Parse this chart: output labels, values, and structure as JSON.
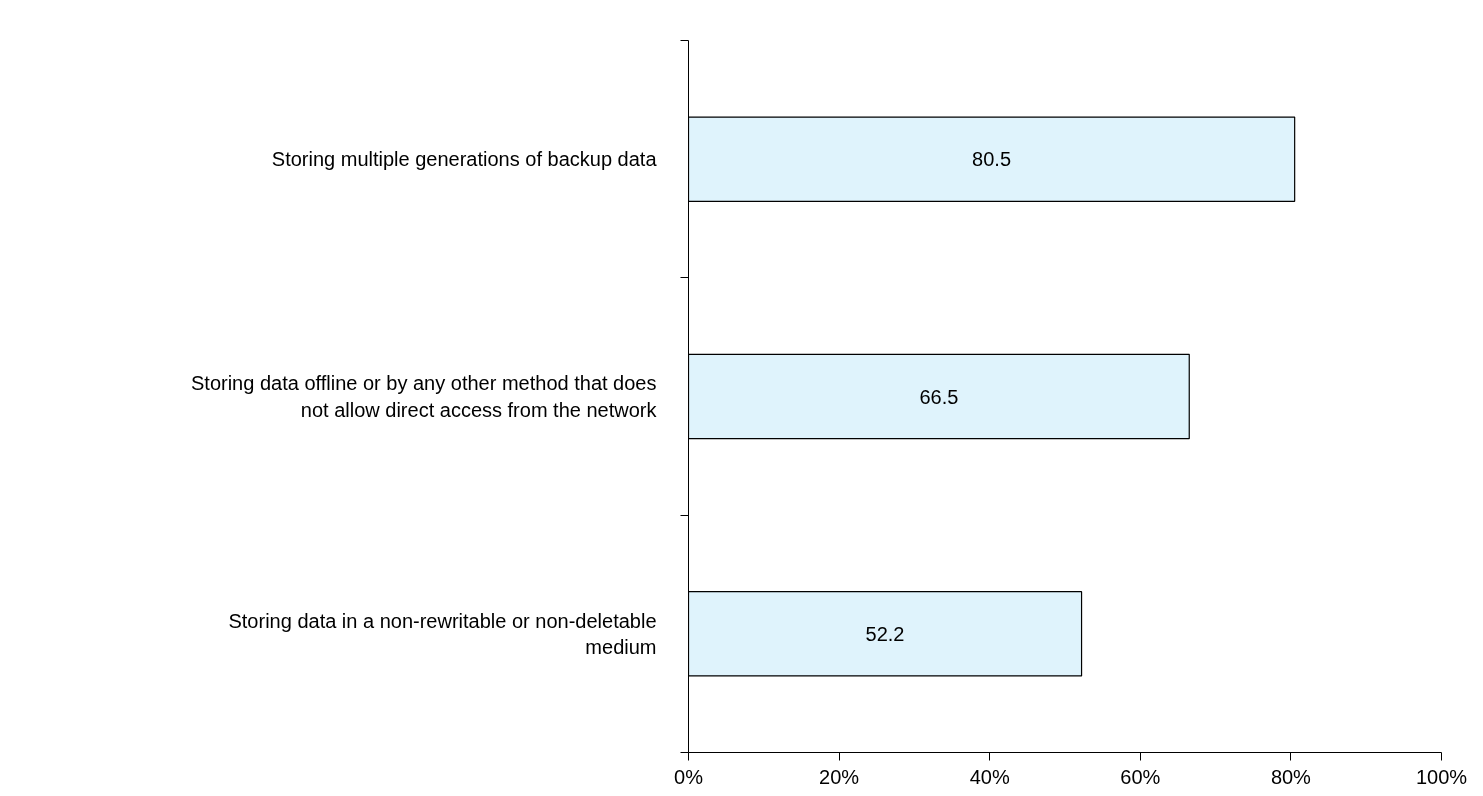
{
  "chart_data": {
    "type": "bar",
    "orientation": "horizontal",
    "categories": [
      "Storing multiple generations of backup data",
      "Storing data offline or by any other method that does not allow direct access from the network",
      "Storing data in a non-rewritable or non-deletable medium"
    ],
    "values": [
      80.5,
      66.5,
      52.2
    ],
    "color": "#dff3fc",
    "xlim": [
      0,
      100
    ],
    "xticks": [
      {
        "value": 0,
        "label": "0%"
      },
      {
        "value": 20,
        "label": "20%"
      },
      {
        "value": 40,
        "label": "40%"
      },
      {
        "value": 60,
        "label": "60%"
      },
      {
        "value": 80,
        "label": "80%"
      },
      {
        "value": 100,
        "label": "100%"
      }
    ],
    "data_labels": true,
    "grid": false
  }
}
